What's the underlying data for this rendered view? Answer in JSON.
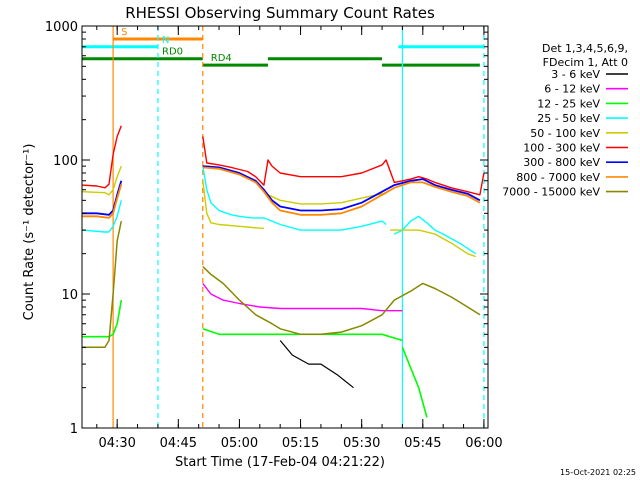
{
  "chart_data": {
    "type": "line",
    "title": "RHESSI Observing Summary Count Rates",
    "xlabel": "Start Time (17-Feb-04 04:21:22)",
    "ylabel": "Count Rate (s⁻¹ detector⁻¹)",
    "y_scale": "log",
    "ylim": [
      1,
      1000
    ],
    "xlim": [
      "04:21:22",
      "06:01:00"
    ],
    "x_ticks": [
      "04:30",
      "04:45",
      "05:00",
      "05:15",
      "05:30",
      "05:45",
      "06:00"
    ],
    "y_ticks": [
      "1",
      "10",
      "100",
      "1000"
    ],
    "footer": "15-Oct-2021 02:25",
    "legend": {
      "placement": "right",
      "header": [
        "Det 1,3,4,5,6,9,",
        "FDecim 1, Att 0"
      ],
      "entries": [
        {
          "label": "3 - 6 keV",
          "color": "#000000"
        },
        {
          "label": "6 - 12 keV",
          "color": "#ff00ff"
        },
        {
          "label": "12 - 25 keV",
          "color": "#00ff00"
        },
        {
          "label": "25 - 50 keV",
          "color": "#00ffff"
        },
        {
          "label": "50 - 100 keV",
          "color": "#cccc00"
        },
        {
          "label": "100 - 300 keV",
          "color": "#ff0000"
        },
        {
          "label": "300 - 800 keV",
          "color": "#0000ff"
        },
        {
          "label": "800 - 7000 keV",
          "color": "#ff8800"
        },
        {
          "label": "7000 - 15000 keV",
          "color": "#888800"
        }
      ]
    },
    "flags": [
      {
        "label": "S",
        "color": "#ff8800",
        "y": 800,
        "segments": [
          [
            "04:29:00",
            "04:51:00"
          ]
        ]
      },
      {
        "label": "N",
        "color": "#00ffff",
        "y": 700,
        "segments": [
          [
            "04:21:22",
            "04:40:00"
          ],
          [
            "05:39:00",
            "06:00:00"
          ]
        ]
      },
      {
        "label": "RD0",
        "color": "#008800",
        "y": 570,
        "segments": [
          [
            "04:21:22",
            "04:51:00"
          ],
          [
            "05:07:00",
            "05:35:00"
          ]
        ]
      },
      {
        "label": "RD4",
        "color": "#008800",
        "y": 510,
        "segments": [
          [
            "04:51:00",
            "05:07:00"
          ],
          [
            "05:35:00",
            "05:59:00"
          ]
        ]
      }
    ],
    "vlines": [
      {
        "x": "04:29:00",
        "color": "#ff8800",
        "style": "solid"
      },
      {
        "x": "04:40:00",
        "color": "#00ffff",
        "style": "dashed"
      },
      {
        "x": "04:51:00",
        "color": "#ff8800",
        "style": "dashed"
      },
      {
        "x": "05:40:00",
        "color": "#00ffff",
        "style": "solid"
      },
      {
        "x": "06:00:00",
        "color": "#00ffff",
        "style": "dashed"
      }
    ],
    "series": [
      {
        "name": "3 - 6 keV",
        "color": "#000000",
        "width": 1.2,
        "segments": [
          [
            [
              "05:10:00",
              4.5
            ],
            [
              "05:13:00",
              3.5
            ],
            [
              "05:17:00",
              3.0
            ],
            [
              "05:20:00",
              3.0
            ],
            [
              "05:24:00",
              2.5
            ],
            [
              "05:28:00",
              2.0
            ]
          ]
        ]
      },
      {
        "name": "6 - 12 keV",
        "color": "#ff00ff",
        "width": 1.4,
        "segments": [
          [
            [
              "04:51:00",
              12
            ],
            [
              "04:53:00",
              10
            ],
            [
              "04:56:00",
              9
            ],
            [
              "05:00:00",
              8.5
            ],
            [
              "05:05:00",
              8
            ],
            [
              "05:10:00",
              7.8
            ],
            [
              "05:20:00",
              7.8
            ],
            [
              "05:30:00",
              7.8
            ],
            [
              "05:35:00",
              7.5
            ],
            [
              "05:40:00",
              7.5
            ]
          ]
        ]
      },
      {
        "name": "12 - 25 keV",
        "color": "#00ff00",
        "width": 1.6,
        "segments": [
          [
            [
              "04:21:22",
              4.8
            ],
            [
              "04:28:00",
              4.8
            ],
            [
              "04:29:00",
              5
            ],
            [
              "04:30:00",
              6
            ],
            [
              "04:31:00",
              9
            ]
          ],
          [
            [
              "04:51:00",
              5.5
            ],
            [
              "04:55:00",
              5.0
            ],
            [
              "05:00:00",
              5.0
            ],
            [
              "05:10:00",
              5.0
            ],
            [
              "05:20:00",
              5.0
            ],
            [
              "05:30:00",
              5.0
            ],
            [
              "05:35:00",
              5.0
            ],
            [
              "05:40:00",
              4.5
            ]
          ],
          [
            [
              "05:40:00",
              4.0
            ],
            [
              "05:44:00",
              2.0
            ],
            [
              "05:46:00",
              1.2
            ]
          ]
        ]
      },
      {
        "name": "25 - 50 keV",
        "color": "#00ffff",
        "width": 1.4,
        "segments": [
          [
            [
              "04:21:22",
              30
            ],
            [
              "04:27:00",
              29
            ],
            [
              "04:28:00",
              29
            ],
            [
              "04:29:00",
              32
            ],
            [
              "04:30:00",
              38
            ],
            [
              "04:31:00",
              50
            ]
          ],
          [
            [
              "04:51:00",
              90
            ],
            [
              "04:52:00",
              60
            ],
            [
              "04:53:00",
              48
            ],
            [
              "04:55:00",
              42
            ],
            [
              "04:58:00",
              39
            ],
            [
              "05:00:00",
              38
            ],
            [
              "05:03:00",
              37
            ],
            [
              "05:06:00",
              37
            ],
            [
              "05:08:00",
              35
            ],
            [
              "05:10:00",
              33
            ],
            [
              "05:15:00",
              30
            ],
            [
              "05:20:00",
              30
            ],
            [
              "05:25:00",
              30
            ],
            [
              "05:30:00",
              32
            ],
            [
              "05:35:00",
              35
            ],
            [
              "05:36:00",
              33
            ]
          ],
          [
            [
              "05:38:00",
              28
            ],
            [
              "05:40:00",
              30
            ],
            [
              "05:42:00",
              35
            ],
            [
              "05:44:00",
              38
            ],
            [
              "05:46:00",
              34
            ],
            [
              "05:48:00",
              30
            ],
            [
              "05:50:00",
              28
            ],
            [
              "05:54:00",
              24
            ],
            [
              "05:58:00",
              20
            ]
          ]
        ]
      },
      {
        "name": "50 - 100 keV",
        "color": "#cccc00",
        "width": 1.4,
        "segments": [
          [
            [
              "04:21:22",
              58
            ],
            [
              "04:27:00",
              57
            ],
            [
              "04:28:00",
              55
            ],
            [
              "04:29:00",
              60
            ],
            [
              "04:30:00",
              75
            ],
            [
              "04:31:00",
              90
            ]
          ],
          [
            [
              "04:51:00",
              70
            ],
            [
              "04:52:00",
              40
            ],
            [
              "04:53:00",
              34
            ],
            [
              "04:55:00",
              33
            ],
            [
              "05:00:00",
              32
            ],
            [
              "05:05:00",
              31
            ],
            [
              "05:06:00",
              31
            ]
          ],
          [
            [
              "05:07:00",
              55
            ],
            [
              "05:10:00",
              50
            ],
            [
              "05:15:00",
              47
            ],
            [
              "05:20:00",
              47
            ],
            [
              "05:25:00",
              48
            ],
            [
              "05:30:00",
              52
            ],
            [
              "05:35:00",
              56
            ],
            [
              "05:36:00",
              56
            ]
          ],
          [
            [
              "05:37:00",
              30
            ],
            [
              "05:40:00",
              30
            ],
            [
              "05:44:00",
              30
            ],
            [
              "05:48:00",
              28
            ],
            [
              "05:52:00",
              24
            ],
            [
              "05:56:00",
              20
            ],
            [
              "05:58:00",
              19
            ]
          ]
        ]
      },
      {
        "name": "100 - 300 keV",
        "color": "#ff0000",
        "width": 1.4,
        "segments": [
          [
            [
              "04:21:22",
              65
            ],
            [
              "04:25:00",
              64
            ],
            [
              "04:27:00",
              62
            ],
            [
              "04:28:00",
              66
            ],
            [
              "04:29:00",
              110
            ],
            [
              "04:30:00",
              150
            ],
            [
              "04:31:00",
              180
            ]
          ],
          [
            [
              "04:51:00",
              150
            ],
            [
              "04:52:00",
              95
            ],
            [
              "04:55:00",
              92
            ],
            [
              "04:58:00",
              88
            ],
            [
              "05:00:00",
              85
            ],
            [
              "05:02:00",
              82
            ],
            [
              "05:04:00",
              75
            ],
            [
              "05:06:00",
              65
            ],
            [
              "05:07:00",
              100
            ],
            [
              "05:08:00",
              90
            ],
            [
              "05:10:00",
              80
            ],
            [
              "05:15:00",
              75
            ],
            [
              "05:20:00",
              75
            ],
            [
              "05:25:00",
              75
            ],
            [
              "05:30:00",
              80
            ],
            [
              "05:35:00",
              92
            ],
            [
              "05:36:00",
              100
            ],
            [
              "05:38:00",
              68
            ],
            [
              "05:40:00",
              70
            ],
            [
              "05:42:00",
              72
            ],
            [
              "05:44:00",
              75
            ],
            [
              "05:46:00",
              72
            ],
            [
              "05:48:00",
              68
            ],
            [
              "05:52:00",
              62
            ],
            [
              "05:56:00",
              58
            ],
            [
              "05:59:00",
              55
            ],
            [
              "06:00:00",
              80
            ]
          ]
        ]
      },
      {
        "name": "300 - 800 keV",
        "color": "#0000ff",
        "width": 1.8,
        "segments": [
          [
            [
              "04:21:22",
              40
            ],
            [
              "04:25:00",
              40
            ],
            [
              "04:28:00",
              39
            ],
            [
              "04:29:00",
              42
            ],
            [
              "04:30:00",
              55
            ],
            [
              "04:31:00",
              70
            ]
          ],
          [
            [
              "04:51:00",
              90
            ],
            [
              "04:55:00",
              88
            ],
            [
              "05:00:00",
              80
            ],
            [
              "05:04:00",
              70
            ],
            [
              "05:06:00",
              60
            ],
            [
              "05:08:00",
              50
            ],
            [
              "05:10:00",
              45
            ],
            [
              "05:15:00",
              42
            ],
            [
              "05:20:00",
              42
            ],
            [
              "05:25:00",
              43
            ],
            [
              "05:30:00",
              48
            ],
            [
              "05:35:00",
              58
            ],
            [
              "05:38:00",
              65
            ],
            [
              "05:42:00",
              70
            ],
            [
              "05:45:00",
              72
            ],
            [
              "05:48:00",
              65
            ],
            [
              "05:52:00",
              60
            ],
            [
              "05:56:00",
              56
            ],
            [
              "05:59:00",
              50
            ]
          ]
        ]
      },
      {
        "name": "800 - 7000 keV",
        "color": "#ff8800",
        "width": 1.8,
        "segments": [
          [
            [
              "04:21:22",
              38
            ],
            [
              "04:25:00",
              38
            ],
            [
              "04:28:00",
              37
            ],
            [
              "04:29:00",
              40
            ],
            [
              "04:30:00",
              52
            ],
            [
              "04:31:00",
              66
            ]
          ],
          [
            [
              "04:51:00",
              88
            ],
            [
              "04:55:00",
              86
            ],
            [
              "05:00:00",
              78
            ],
            [
              "05:04:00",
              68
            ],
            [
              "05:06:00",
              58
            ],
            [
              "05:08:00",
              48
            ],
            [
              "05:10:00",
              42
            ],
            [
              "05:15:00",
              39
            ],
            [
              "05:20:00",
              39
            ],
            [
              "05:25:00",
              40
            ],
            [
              "05:30:00",
              45
            ],
            [
              "05:35:00",
              55
            ],
            [
              "05:38:00",
              62
            ],
            [
              "05:42:00",
              68
            ],
            [
              "05:45:00",
              68
            ],
            [
              "05:48:00",
              63
            ],
            [
              "05:52:00",
              58
            ],
            [
              "05:56:00",
              54
            ],
            [
              "05:59:00",
              48
            ]
          ]
        ]
      },
      {
        "name": "7000 - 15000 keV",
        "color": "#888800",
        "width": 1.5,
        "segments": [
          [
            [
              "04:21:22",
              4.0
            ],
            [
              "04:27:00",
              4.0
            ],
            [
              "04:28:00",
              4.5
            ],
            [
              "04:29:00",
              10
            ],
            [
              "04:30:00",
              25
            ],
            [
              "04:31:00",
              35
            ]
          ],
          [
            [
              "04:51:00",
              16
            ],
            [
              "04:53:00",
              14
            ],
            [
              "04:56:00",
              12
            ],
            [
              "05:00:00",
              9
            ],
            [
              "05:04:00",
              7
            ],
            [
              "05:08:00",
              6
            ],
            [
              "05:10:00",
              5.5
            ],
            [
              "05:15:00",
              5
            ],
            [
              "05:20:00",
              5
            ],
            [
              "05:25:00",
              5.2
            ],
            [
              "05:30:00",
              5.8
            ],
            [
              "05:35:00",
              7
            ],
            [
              "05:38:00",
              9
            ],
            [
              "05:42:00",
              10.5
            ],
            [
              "05:45:00",
              12
            ],
            [
              "05:48:00",
              11
            ],
            [
              "05:52:00",
              9.5
            ],
            [
              "05:56:00",
              8
            ],
            [
              "05:59:00",
              7
            ]
          ]
        ]
      }
    ]
  }
}
